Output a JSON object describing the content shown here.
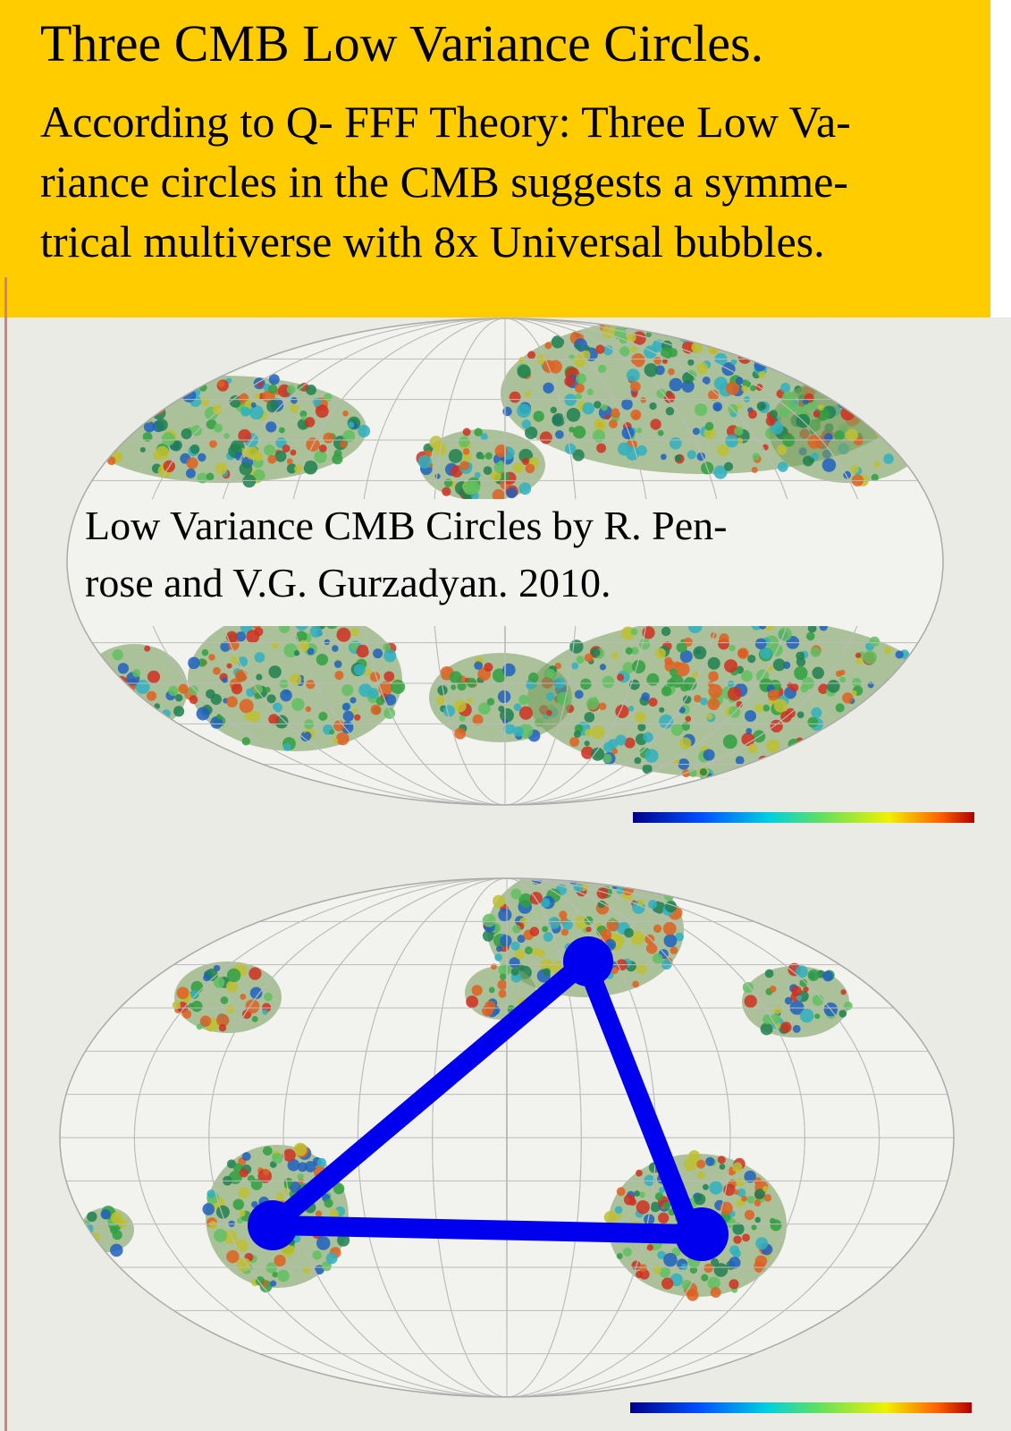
{
  "header": {
    "title": "Three CMB Low Variance Circles.",
    "lines": [
      "According to Q- FFF Theory: Three Low Va-",
      "riance circles in the CMB suggests a symme-",
      "trical multiverse with 8x Universal bubbles."
    ]
  },
  "caption": {
    "lines": [
      "Low Variance CMB Circles by R. Pen-",
      "rose and V.G. Gurzadyan. 2010."
    ]
  }
}
